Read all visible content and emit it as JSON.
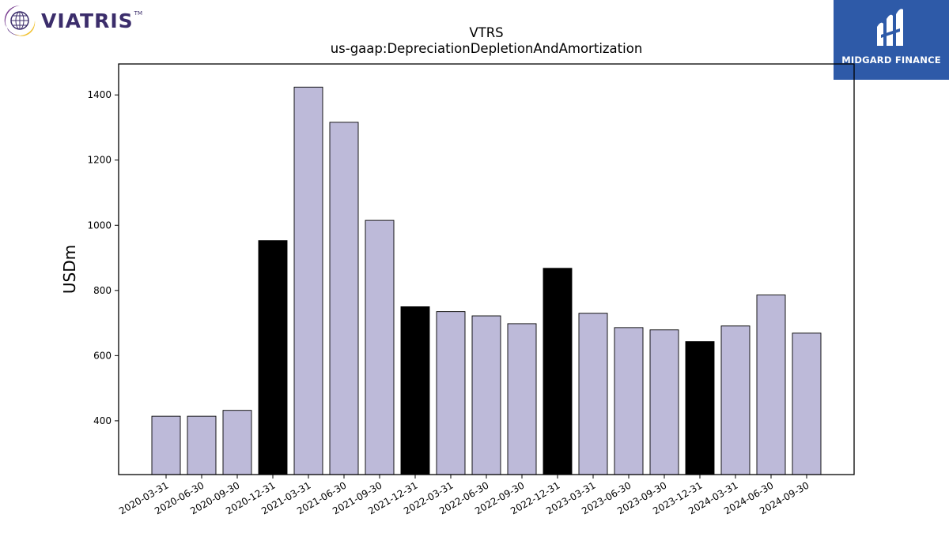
{
  "logos": {
    "left_brand": "VIATRIS",
    "left_tm": "TM",
    "right_brand": "MIDGARD FINANCE"
  },
  "chart_data": {
    "type": "bar",
    "title": "VTRS",
    "subtitle": "us-gaap:DepreciationDepletionAndAmortization",
    "xlabel": "",
    "ylabel": "USDm",
    "ylim": [
      235,
      1495
    ],
    "yticks": [
      400,
      600,
      800,
      1000,
      1200,
      1400
    ],
    "grid": false,
    "categories": [
      "2020-03-31",
      "2020-06-30",
      "2020-09-30",
      "2020-12-31",
      "2021-03-31",
      "2021-06-30",
      "2021-09-30",
      "2021-12-31",
      "2022-03-31",
      "2022-06-30",
      "2022-09-30",
      "2022-12-31",
      "2023-03-31",
      "2023-06-30",
      "2023-09-30",
      "2023-12-31",
      "2024-03-31",
      "2024-06-30",
      "2024-09-30"
    ],
    "values": [
      414,
      414,
      432,
      953,
      1424,
      1316,
      1015,
      750,
      735,
      722,
      698,
      868,
      730,
      686,
      679,
      643,
      691,
      786,
      669
    ],
    "colors": {
      "quarter": "#bdbad9",
      "year_end": "#000000",
      "edge": "#000000"
    }
  }
}
